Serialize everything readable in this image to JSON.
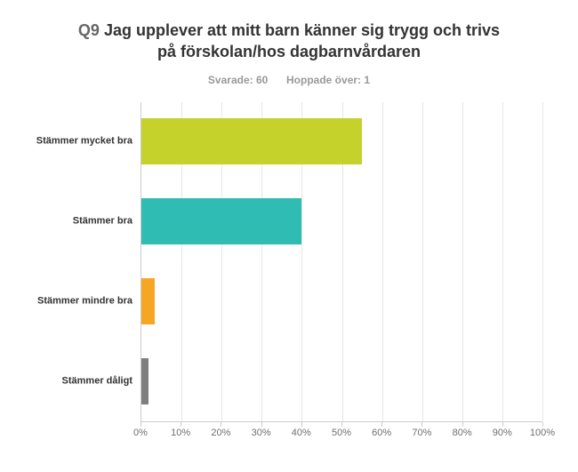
{
  "chart": {
    "type": "bar-horizontal",
    "question_number": "Q9",
    "title_rest": "Jag upplever att mitt barn känner sig trygg och trivs på förskolan/hos dagbarnvårdaren",
    "title_fontsize": 18,
    "title_color": "#333333",
    "qnum_color": "#666666",
    "subtitle_answered_label": "Svarade:",
    "subtitle_answered_value": "60",
    "subtitle_skipped_label": "Hoppade över:",
    "subtitle_skipped_value": "1",
    "subtitle_fontsize": 12,
    "subtitle_color": "#999999",
    "background_color": "#ffffff",
    "grid_color": "#e6e6e6",
    "axis_color": "#cccccc",
    "xlim": [
      0,
      100
    ],
    "xtick_step": 10,
    "xtick_suffix": "%",
    "xtick_color": "#6f6f6f",
    "xtick_fontsize": 11,
    "ylabel_fontsize": 11,
    "ylabel_color": "#333333",
    "bar_height_pct": 58,
    "categories": [
      {
        "label": "Stämmer mycket bra",
        "value": 55.0,
        "color": "#c5d22c"
      },
      {
        "label": "Stämmer bra",
        "value": 40.0,
        "color": "#2fbcb2"
      },
      {
        "label": "Stämmer mindre bra",
        "value": 3.3,
        "color": "#f5a623"
      },
      {
        "label": "Stämmer dåligt",
        "value": 1.7,
        "color": "#7f7f7f"
      }
    ]
  }
}
